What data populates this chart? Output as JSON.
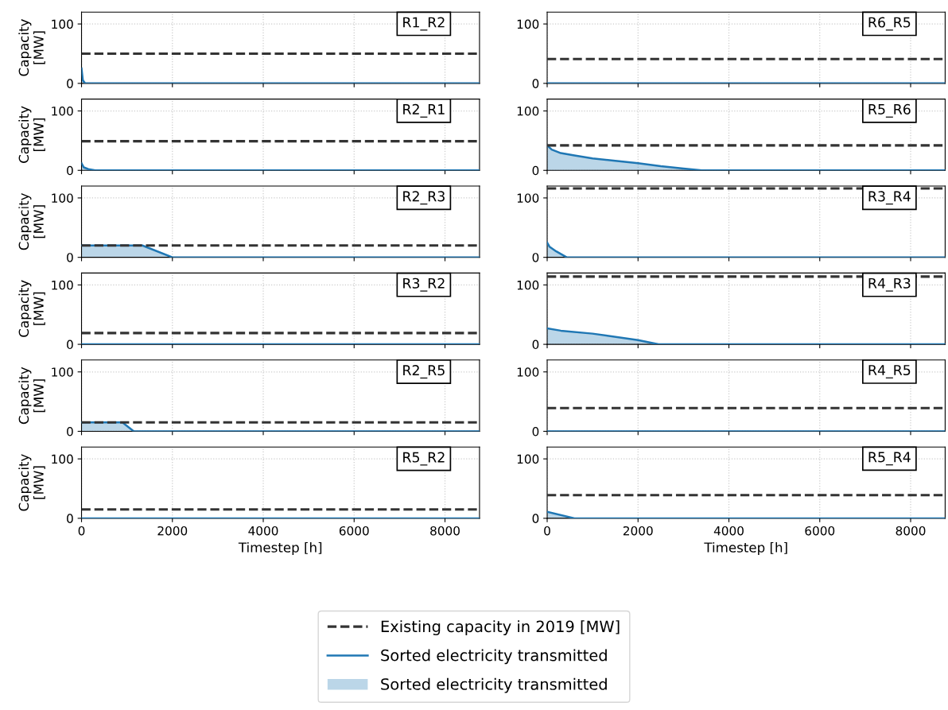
{
  "chart_data": [
    {
      "type": "area",
      "title": "R1_R2",
      "ylabel": "Capacity\n[MW]",
      "xlim": [
        0,
        8760
      ],
      "ylim": [
        0,
        120
      ],
      "xticks": [
        0,
        2000,
        4000,
        6000,
        8000
      ],
      "yticks": [
        0,
        100
      ],
      "grid": true,
      "tick_labels": "y",
      "legend": "bottom",
      "series": [
        {
          "name": "Sorted electricity transmitted",
          "color": "#1f77b4",
          "x": [
            0,
            30,
            80,
            8760
          ],
          "values": [
            25,
            5,
            0,
            0
          ]
        }
      ],
      "ref_lines": [
        {
          "axis": "y",
          "value": 50,
          "label": "Existing capacity in 2019 [MW]",
          "color": "#333333",
          "line_style": "dashed"
        }
      ]
    },
    {
      "type": "area",
      "title": "R6_R5",
      "xlim": [
        0,
        8760
      ],
      "ylim": [
        0,
        120
      ],
      "xticks": [
        0,
        2000,
        4000,
        6000,
        8000
      ],
      "yticks": [
        0,
        100
      ],
      "grid": true,
      "tick_labels": "y",
      "series": [
        {
          "type": "line",
          "color": "#1f77b4",
          "x": [
            0,
            8760
          ],
          "values": [
            0,
            0
          ]
        }
      ],
      "ref_lines": [
        {
          "axis": "y",
          "value": 41,
          "color": "#333333",
          "line_style": "dashed"
        }
      ]
    },
    {
      "type": "area",
      "title": "R2_R1",
      "ylabel": "Capacity\n[MW]",
      "xlim": [
        0,
        8760
      ],
      "ylim": [
        0,
        120
      ],
      "xticks": [
        0,
        2000,
        4000,
        6000,
        8000
      ],
      "yticks": [
        0,
        100
      ],
      "grid": true,
      "tick_labels": "y",
      "series": [
        {
          "color": "#1f77b4",
          "x": [
            0,
            50,
            150,
            300,
            8760
          ],
          "values": [
            12,
            5,
            2,
            0,
            0
          ]
        }
      ],
      "ref_lines": [
        {
          "axis": "y",
          "value": 49,
          "color": "#333333",
          "line_style": "dashed"
        }
      ]
    },
    {
      "type": "area",
      "title": "R5_R6",
      "xlim": [
        0,
        8760
      ],
      "ylim": [
        0,
        120
      ],
      "xticks": [
        0,
        2000,
        4000,
        6000,
        8000
      ],
      "yticks": [
        0,
        100
      ],
      "grid": true,
      "tick_labels": "y",
      "series": [
        {
          "color": "#1f77b4",
          "x": [
            0,
            100,
            300,
            600,
            1000,
            1500,
            2000,
            2500,
            3000,
            3400,
            8760
          ],
          "values": [
            42,
            35,
            29,
            25,
            20,
            16,
            12,
            7,
            3,
            0,
            0
          ]
        }
      ],
      "ref_lines": [
        {
          "axis": "y",
          "value": 42,
          "color": "#333333",
          "line_style": "dashed"
        }
      ]
    },
    {
      "type": "area",
      "title": "R2_R3",
      "ylabel": "Capacity\n[MW]",
      "xlim": [
        0,
        8760
      ],
      "ylim": [
        0,
        120
      ],
      "xticks": [
        0,
        2000,
        4000,
        6000,
        8000
      ],
      "yticks": [
        0,
        100
      ],
      "grid": true,
      "tick_labels": "y",
      "series": [
        {
          "color": "#1f77b4",
          "x": [
            0,
            1340,
            2000,
            8760
          ],
          "values": [
            20,
            20,
            0,
            0
          ]
        }
      ],
      "ref_lines": [
        {
          "axis": "y",
          "value": 20,
          "color": "#333333",
          "line_style": "dashed"
        }
      ]
    },
    {
      "type": "area",
      "title": "R3_R4",
      "xlim": [
        0,
        8760
      ],
      "ylim": [
        0,
        120
      ],
      "xticks": [
        0,
        2000,
        4000,
        6000,
        8000
      ],
      "yticks": [
        0,
        100
      ],
      "grid": true,
      "tick_labels": "y",
      "series": [
        {
          "color": "#1f77b4",
          "x": [
            0,
            50,
            200,
            430,
            8760
          ],
          "values": [
            25,
            18,
            10,
            0,
            0
          ]
        }
      ],
      "ref_lines": [
        {
          "axis": "y",
          "value": 116,
          "color": "#333333",
          "line_style": "dashed"
        }
      ]
    },
    {
      "type": "area",
      "title": "R3_R2",
      "ylabel": "Capacity\n[MW]",
      "xlim": [
        0,
        8760
      ],
      "ylim": [
        0,
        120
      ],
      "xticks": [
        0,
        2000,
        4000,
        6000,
        8000
      ],
      "yticks": [
        0,
        100
      ],
      "grid": true,
      "tick_labels": "y",
      "series": [
        {
          "type": "line",
          "color": "#1f77b4",
          "x": [
            0,
            8760
          ],
          "values": [
            0,
            0
          ]
        }
      ],
      "ref_lines": [
        {
          "axis": "y",
          "value": 19,
          "color": "#333333",
          "line_style": "dashed"
        }
      ]
    },
    {
      "type": "area",
      "title": "R4_R3",
      "xlim": [
        0,
        8760
      ],
      "ylim": [
        0,
        120
      ],
      "xticks": [
        0,
        2000,
        4000,
        6000,
        8000
      ],
      "yticks": [
        0,
        100
      ],
      "grid": true,
      "tick_labels": "y",
      "series": [
        {
          "color": "#1f77b4",
          "x": [
            0,
            300,
            1000,
            2000,
            2450,
            8760
          ],
          "values": [
            27,
            23,
            18,
            7,
            0,
            0
          ]
        }
      ],
      "ref_lines": [
        {
          "axis": "y",
          "value": 114,
          "color": "#333333",
          "line_style": "dashed"
        }
      ]
    },
    {
      "type": "area",
      "title": "R2_R5",
      "ylabel": "Capacity\n[MW]",
      "xlim": [
        0,
        8760
      ],
      "ylim": [
        0,
        120
      ],
      "xticks": [
        0,
        2000,
        4000,
        6000,
        8000
      ],
      "yticks": [
        0,
        100
      ],
      "grid": true,
      "tick_labels": "y",
      "series": [
        {
          "color": "#1f77b4",
          "x": [
            0,
            900,
            1150,
            8760
          ],
          "values": [
            15,
            15,
            0,
            0
          ]
        }
      ],
      "ref_lines": [
        {
          "axis": "y",
          "value": 15,
          "color": "#333333",
          "line_style": "dashed"
        }
      ]
    },
    {
      "type": "area",
      "title": "R4_R5",
      "xlim": [
        0,
        8760
      ],
      "ylim": [
        0,
        120
      ],
      "xticks": [
        0,
        2000,
        4000,
        6000,
        8000
      ],
      "yticks": [
        0,
        100
      ],
      "grid": true,
      "tick_labels": "y",
      "series": [
        {
          "type": "line",
          "color": "#1f77b4",
          "x": [
            0,
            8760
          ],
          "values": [
            0,
            0
          ]
        }
      ],
      "ref_lines": [
        {
          "axis": "y",
          "value": 39,
          "color": "#333333",
          "line_style": "dashed"
        }
      ]
    },
    {
      "type": "area",
      "title": "R5_R2",
      "ylabel": "Capacity\n[MW]",
      "xlabel": "Timestep [h]",
      "xlim": [
        0,
        8760
      ],
      "ylim": [
        0,
        120
      ],
      "xticks": [
        0,
        2000,
        4000,
        6000,
        8000
      ],
      "yticks": [
        0,
        100
      ],
      "grid": true,
      "series": [
        {
          "type": "line",
          "color": "#1f77b4",
          "x": [
            0,
            8760
          ],
          "values": [
            0,
            0
          ]
        }
      ],
      "ref_lines": [
        {
          "axis": "y",
          "value": 15,
          "color": "#333333",
          "line_style": "dashed"
        }
      ]
    },
    {
      "type": "area",
      "title": "R5_R4",
      "xlabel": "Timestep [h]",
      "xlim": [
        0,
        8760
      ],
      "ylim": [
        0,
        120
      ],
      "xticks": [
        0,
        2000,
        4000,
        6000,
        8000
      ],
      "yticks": [
        0,
        100
      ],
      "grid": true,
      "series": [
        {
          "color": "#1f77b4",
          "x": [
            0,
            600,
            8760
          ],
          "values": [
            11,
            0,
            0
          ]
        }
      ],
      "ref_lines": [
        {
          "axis": "y",
          "value": 39,
          "color": "#333333",
          "line_style": "dashed"
        }
      ]
    }
  ]
}
